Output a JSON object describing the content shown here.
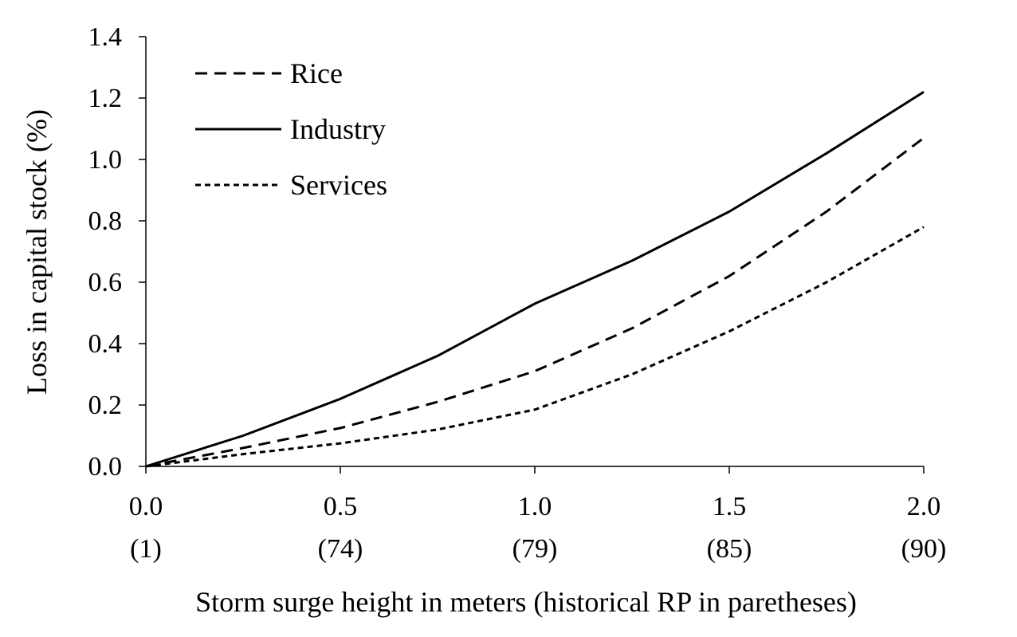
{
  "chart_data": {
    "type": "line",
    "xlabel": "Storm surge height in meters (historical RP in paretheses)",
    "ylabel": "Loss in capital stock (%)",
    "xlim": [
      0,
      2
    ],
    "ylim": [
      0,
      1.4
    ],
    "x_ticks": [
      {
        "value": 0.0,
        "label": "0.0",
        "sublabel": "(1)"
      },
      {
        "value": 0.5,
        "label": "0.5",
        "sublabel": "(74)"
      },
      {
        "value": 1.0,
        "label": "1.0",
        "sublabel": "(79)"
      },
      {
        "value": 1.5,
        "label": "1.5",
        "sublabel": "(85)"
      },
      {
        "value": 2.0,
        "label": "2.0",
        "sublabel": "(90)"
      }
    ],
    "y_ticks": [
      {
        "value": 0.0,
        "label": "0.0"
      },
      {
        "value": 0.2,
        "label": "0.2"
      },
      {
        "value": 0.4,
        "label": "0.4"
      },
      {
        "value": 0.6,
        "label": "0.6"
      },
      {
        "value": 0.8,
        "label": "0.8"
      },
      {
        "value": 1.0,
        "label": "1.0"
      },
      {
        "value": 1.2,
        "label": "1.2"
      },
      {
        "value": 1.4,
        "label": "1.4"
      }
    ],
    "grid": false,
    "legend_position": "top-left",
    "x": [
      0.0,
      0.25,
      0.5,
      0.75,
      1.0,
      1.25,
      1.5,
      1.75,
      2.0
    ],
    "series": [
      {
        "name": "Rice",
        "style": "long-dash",
        "values": [
          0.0,
          0.06,
          0.125,
          0.21,
          0.31,
          0.45,
          0.62,
          0.83,
          1.07
        ]
      },
      {
        "name": "Industry",
        "style": "solid",
        "values": [
          0.0,
          0.1,
          0.22,
          0.36,
          0.53,
          0.67,
          0.83,
          1.02,
          1.22
        ]
      },
      {
        "name": "Services",
        "style": "short-dash",
        "values": [
          0.0,
          0.04,
          0.075,
          0.12,
          0.185,
          0.3,
          0.44,
          0.6,
          0.78
        ]
      }
    ]
  }
}
